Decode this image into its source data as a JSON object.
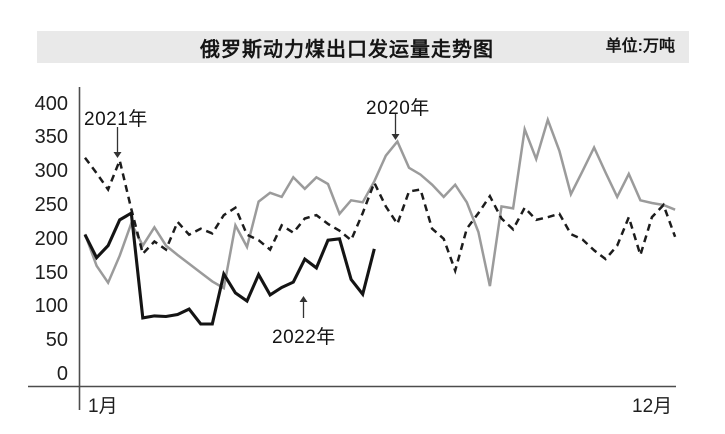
{
  "header": {
    "title": "俄罗斯动力煤出口发运量走势图",
    "unit_label": "单位:万吨",
    "bar_color": "#e9e9e9"
  },
  "chart_data": {
    "type": "line",
    "title": "俄罗斯动力煤出口发运量走势图",
    "unit": "万吨",
    "x_axis": {
      "label_start": "1月",
      "label_end": "12月",
      "description": "weekly points, week 1 to week 52 (Jan to Dec)"
    },
    "ylim": [
      0,
      400
    ],
    "y_ticks": [
      400,
      350,
      300,
      250,
      200,
      150,
      100,
      50,
      0
    ],
    "grid": false,
    "legend_position": "inline-annotations",
    "series": [
      {
        "name": "2020年",
        "style": "solid",
        "color": "#9b9b9b",
        "values": [
          207,
          160,
          135,
          175,
          223,
          190,
          217,
          190,
          176,
          163,
          150,
          137,
          127,
          220,
          188,
          255,
          268,
          262,
          291,
          274,
          291,
          281,
          237,
          257,
          254,
          285,
          323,
          344,
          305,
          295,
          280,
          262,
          280,
          254,
          210,
          130,
          248,
          245,
          362,
          318,
          376,
          330,
          266,
          300,
          335,
          298,
          262,
          296,
          257,
          253,
          250,
          243
        ]
      },
      {
        "name": "2021年",
        "style": "dashed",
        "color": "#1c1c1c",
        "values": [
          320,
          297,
          273,
          316,
          244,
          178,
          196,
          184,
          225,
          206,
          215,
          208,
          235,
          246,
          206,
          198,
          184,
          220,
          209,
          230,
          235,
          222,
          212,
          198,
          238,
          283,
          248,
          222,
          270,
          273,
          215,
          200,
          153,
          215,
          238,
          263,
          230,
          214,
          246,
          228,
          232,
          237,
          207,
          199,
          183,
          170,
          190,
          232,
          176,
          232,
          250,
          203
        ]
      },
      {
        "name": "2022年",
        "style": "solid-thick",
        "color": "#141414",
        "values": [
          206,
          172,
          190,
          228,
          238,
          83,
          86,
          85,
          88,
          96,
          74,
          74,
          148,
          120,
          108,
          147,
          117,
          128,
          136,
          170,
          157,
          198,
          200,
          140,
          118,
          185
        ]
      }
    ],
    "annotations": [
      {
        "text": "2021年",
        "arrow": "down",
        "points_to": "2021 dashed line peak near week 4"
      },
      {
        "text": "2020年",
        "arrow": "down",
        "points_to": "2020 gray line peak near week 28"
      },
      {
        "text": "2022年",
        "arrow": "up",
        "points_to": "2022 black line around week 20"
      }
    ],
    "axis_color": "#4d4d4d"
  }
}
